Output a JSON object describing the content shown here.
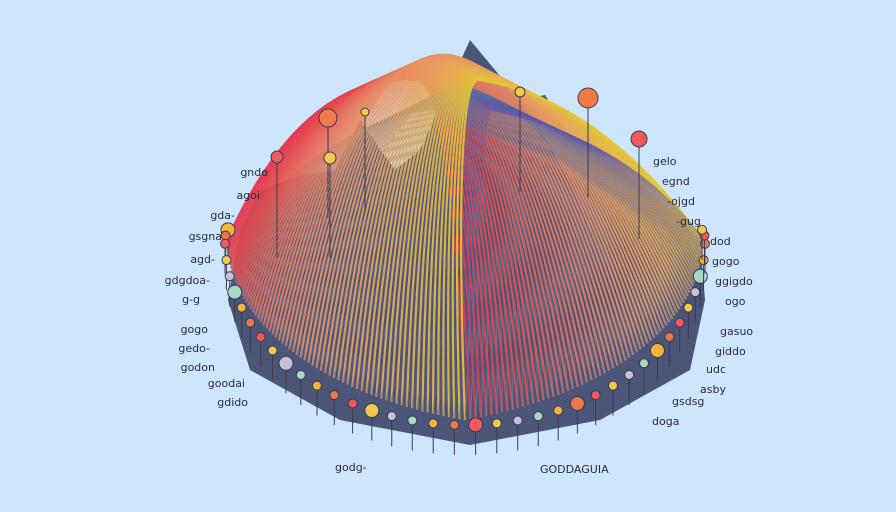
{
  "labels_left": [
    "gndo",
    "agoi",
    "gda-",
    "gsgna",
    "agd-",
    "gdgdoa-",
    "g-g",
    "gogo",
    "gedo-",
    "godon",
    "goodai",
    "gdido"
  ],
  "labels_right": [
    "gelo",
    "egnd",
    "-ojgd",
    "-gug",
    "dod",
    "gogo",
    "ggigdo",
    "ogo",
    "gasuo",
    "giddo",
    "udc",
    "asby",
    "gsdsg",
    "doga"
  ],
  "labels_bottom": [
    "godg-",
    "GODDAGUIA"
  ]
}
